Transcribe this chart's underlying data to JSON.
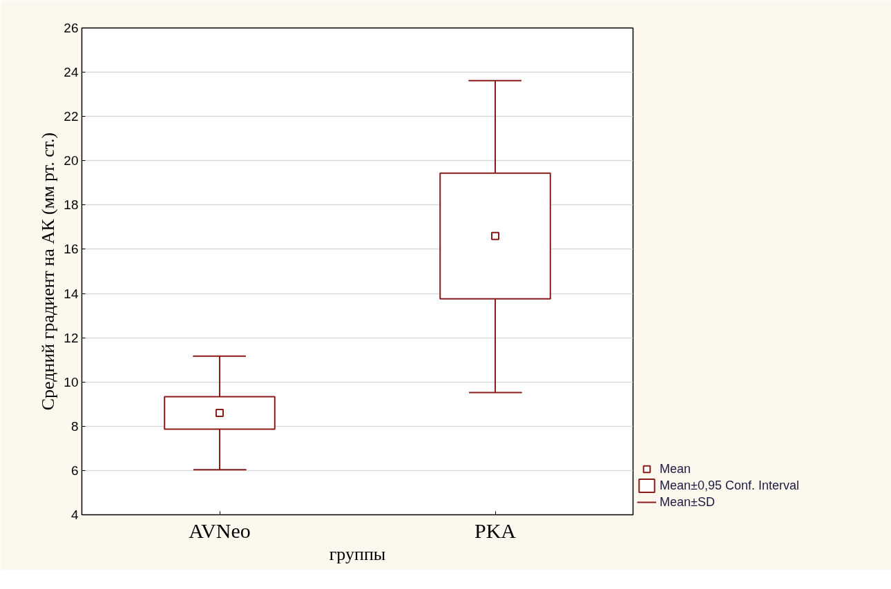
{
  "chart_data": {
    "type": "scatter",
    "xlabel": "группы",
    "ylabel": "Средний градиент на АК (мм рт. ст.)",
    "categories": [
      "AVNeo",
      "PKA"
    ],
    "series": [
      {
        "name": "Mean",
        "marker": "square",
        "color": "#8b1a1a",
        "values": [
          8.6,
          16.6
        ],
        "errors": [
          [
            6.04,
            11.17
          ],
          [
            9.52,
            23.62
          ]
        ]
      },
      {
        "name": "Mean±0,95 Conf. Interval",
        "type": "bar",
        "color": "#8b1a1a",
        "base": [
          7.87,
          13.76
        ],
        "values": [
          1.47,
          5.68
        ]
      }
    ],
    "ylim": [
      4,
      26
    ],
    "yticks": [
      4,
      6,
      8,
      10,
      12,
      14,
      16,
      18,
      20,
      22,
      24,
      26
    ],
    "grid": "y",
    "legend": "bottom right",
    "annotations": [
      "Mean±SD"
    ]
  }
}
